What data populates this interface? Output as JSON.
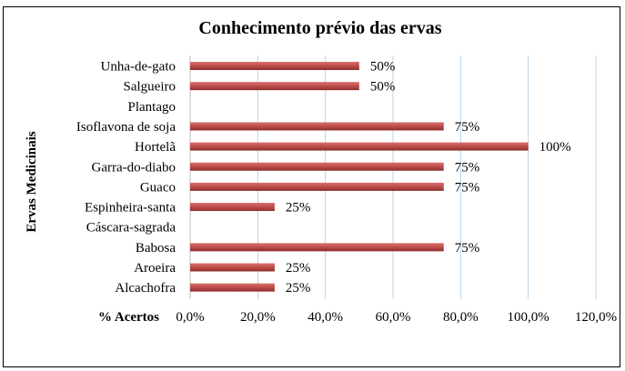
{
  "chart_data": {
    "type": "bar",
    "orientation": "horizontal",
    "title": "Conhecimento prévio das ervas",
    "xlabel": "% Acertos",
    "ylabel": "Ervas Medicinais",
    "xlim": [
      0,
      120
    ],
    "xticks": [
      "0,0%",
      "20,0%",
      "40,0%",
      "60,0%",
      "80,0%",
      "100,0%",
      "120,0%"
    ],
    "xtick_values": [
      0,
      20,
      40,
      60,
      80,
      100,
      120
    ],
    "grid": true,
    "legend": "none",
    "bar_color": "#c0504d",
    "grid_color": "#b9d3e9",
    "categories": [
      "Unha-de-gato",
      "Salgueiro",
      "Plantago",
      "Isoflavona de soja",
      "Hortelã",
      "Garra-do-diabo",
      "Guaco",
      "Espinheira-santa",
      "Cáscara-sagrada",
      "Babosa",
      "Aroeira",
      "Alcachofra"
    ],
    "values": [
      50,
      50,
      0,
      75,
      100,
      75,
      75,
      25,
      0,
      75,
      25,
      25
    ],
    "data_labels": [
      "50%",
      "50%",
      "",
      "75%",
      "100%",
      "75%",
      "75%",
      "25%",
      "",
      "75%",
      "25%",
      "25%"
    ]
  }
}
